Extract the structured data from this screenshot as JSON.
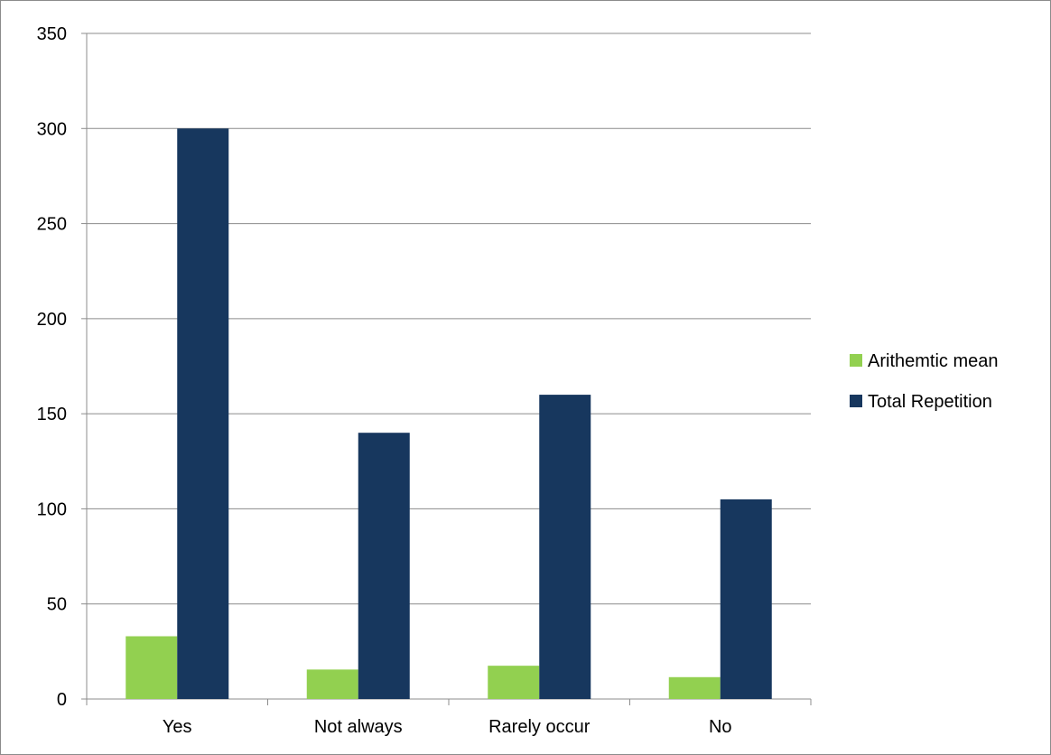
{
  "chart_data": {
    "type": "bar",
    "categories": [
      "Yes",
      "Not always",
      "Rarely occur",
      "No"
    ],
    "series": [
      {
        "name": "Arithemtic mean",
        "color": "#92d050",
        "values": [
          33,
          15.5,
          17.5,
          11.5
        ]
      },
      {
        "name": "Total Repetition",
        "color": "#17375e",
        "values": [
          300,
          140,
          160,
          105
        ]
      }
    ],
    "ylim": [
      0,
      350
    ],
    "yticks": [
      0,
      50,
      100,
      150,
      200,
      250,
      300,
      350
    ],
    "grid": true,
    "legend": "right"
  }
}
